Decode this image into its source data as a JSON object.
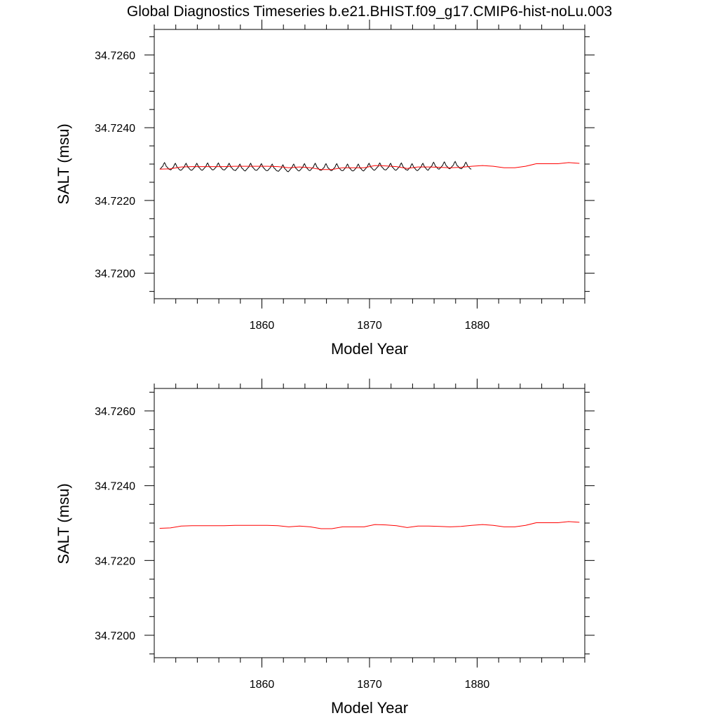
{
  "figure": {
    "title": "Global Diagnostics Timeseries b.e21.BHIST.f09_g17.CMIP6-hist-noLu.003"
  },
  "colors": {
    "monthly_series": "#000000",
    "annual_series": "#ff0000",
    "background": "#ffffff"
  },
  "chart_data": [
    {
      "type": "line",
      "title": "Global Diagnostics Timeseries b.e21.BHIST.f09_g17.CMIP6-hist-noLu.003",
      "xlabel": "Model Year",
      "ylabel": "SALT (msu)",
      "xlim": [
        1850,
        1890
      ],
      "ylim": [
        34.7193,
        34.7267
      ],
      "x_ticks": [
        1860,
        1870,
        1880
      ],
      "x_tick_labels": [
        "1860",
        "1870",
        "1880"
      ],
      "y_ticks": [
        34.72,
        34.722,
        34.724,
        34.726
      ],
      "y_tick_labels": [
        "34.7200",
        "34.7220",
        "34.7240",
        "34.7260"
      ],
      "grid": false,
      "legend": "none",
      "series": [
        {
          "color": "#000000",
          "style": "monthly",
          "annual_means": [
            34.72292,
            34.7229,
            34.7229,
            34.7229,
            34.72291,
            34.72291,
            34.7229,
            34.72288,
            34.7229,
            34.72289,
            34.72288,
            34.72286,
            34.72288,
            34.72289,
            34.7229,
            34.72289,
            34.72289,
            34.72288,
            34.72288,
            34.7229,
            34.72291,
            34.7229,
            34.72291,
            34.72289,
            34.7229,
            34.72293,
            34.72294,
            34.72295,
            34.72293
          ],
          "seasonal_peak_above_mean": 0.00012,
          "seasonal_trough_below_mean": 7e-05
        },
        {
          "color": "#ff0000",
          "style": "annual",
          "x": [
            1850.5,
            1851.5,
            1852.5,
            1853.5,
            1854.5,
            1855.5,
            1856.5,
            1857.5,
            1858.5,
            1859.5,
            1860.5,
            1861.5,
            1862.5,
            1863.5,
            1864.5,
            1865.5,
            1866.5,
            1867.5,
            1868.5,
            1869.5,
            1870.5,
            1871.5,
            1872.5,
            1873.5,
            1874.5,
            1875.5,
            1876.5,
            1877.5,
            1878.5,
            1879.5,
            1880.5,
            1881.5,
            1882.5,
            1883.5,
            1884.5,
            1885.5,
            1886.5,
            1887.5,
            1888.5,
            1889.5
          ],
          "y": [
            34.72286,
            34.72287,
            34.72292,
            34.72293,
            34.72293,
            34.72293,
            34.72293,
            34.72294,
            34.72294,
            34.72294,
            34.72294,
            34.72293,
            34.7229,
            34.72292,
            34.7229,
            34.72285,
            34.72285,
            34.7229,
            34.7229,
            34.7229,
            34.72296,
            34.72295,
            34.72293,
            34.72288,
            34.72292,
            34.72292,
            34.72291,
            34.7229,
            34.72291,
            34.72294,
            34.72296,
            34.72294,
            34.7229,
            34.7229,
            34.72294,
            34.72301,
            34.72301,
            34.72301,
            34.72304,
            34.72302
          ]
        }
      ]
    },
    {
      "type": "line",
      "title": "",
      "xlabel": "Model Year",
      "ylabel": "SALT (msu)",
      "xlim": [
        1850,
        1890
      ],
      "ylim": [
        34.7194,
        34.7266
      ],
      "x_ticks": [
        1860,
        1870,
        1880
      ],
      "x_tick_labels": [
        "1860",
        "1870",
        "1880"
      ],
      "y_ticks": [
        34.72,
        34.722,
        34.724,
        34.726
      ],
      "y_tick_labels": [
        "34.7200",
        "34.7220",
        "34.7240",
        "34.7260"
      ],
      "grid": false,
      "legend": "none",
      "series": [
        {
          "color": "#ff0000",
          "style": "annual",
          "x": [
            1850.5,
            1851.5,
            1852.5,
            1853.5,
            1854.5,
            1855.5,
            1856.5,
            1857.5,
            1858.5,
            1859.5,
            1860.5,
            1861.5,
            1862.5,
            1863.5,
            1864.5,
            1865.5,
            1866.5,
            1867.5,
            1868.5,
            1869.5,
            1870.5,
            1871.5,
            1872.5,
            1873.5,
            1874.5,
            1875.5,
            1876.5,
            1877.5,
            1878.5,
            1879.5,
            1880.5,
            1881.5,
            1882.5,
            1883.5,
            1884.5,
            1885.5,
            1886.5,
            1887.5,
            1888.5,
            1889.5
          ],
          "y": [
            34.72286,
            34.72287,
            34.72292,
            34.72293,
            34.72293,
            34.72293,
            34.72293,
            34.72294,
            34.72294,
            34.72294,
            34.72294,
            34.72293,
            34.7229,
            34.72292,
            34.7229,
            34.72285,
            34.72285,
            34.7229,
            34.7229,
            34.7229,
            34.72296,
            34.72295,
            34.72293,
            34.72288,
            34.72292,
            34.72292,
            34.72291,
            34.7229,
            34.72291,
            34.72294,
            34.72296,
            34.72294,
            34.7229,
            34.7229,
            34.72294,
            34.72301,
            34.72301,
            34.72301,
            34.72304,
            34.72302
          ]
        }
      ]
    }
  ]
}
